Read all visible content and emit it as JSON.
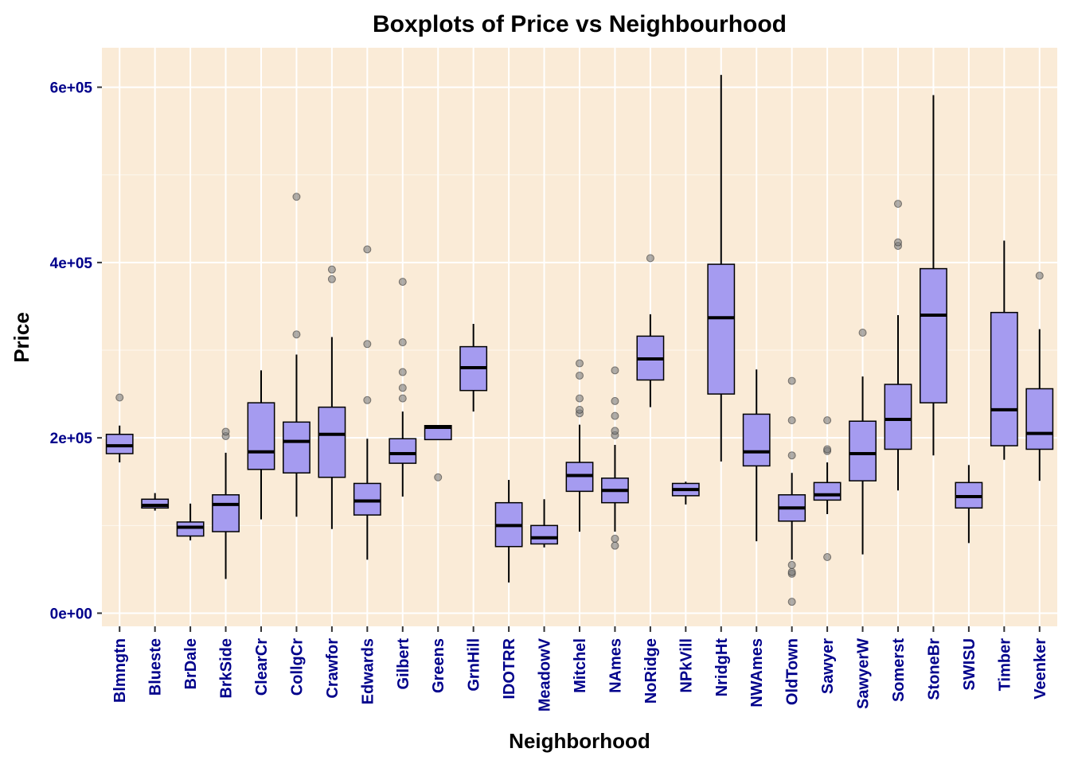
{
  "chart_data": {
    "type": "boxplot",
    "title": "Boxplots of Price vs Neighbourhood",
    "xlabel": "Neighborhood",
    "ylabel": "Price",
    "ylim": [
      -15000,
      645000
    ],
    "yticks": [
      0,
      200000,
      400000,
      600000
    ],
    "ytick_labels": [
      "0e+00",
      "2e+05",
      "4e+05",
      "6e+05"
    ],
    "grid": true,
    "colors": {
      "panel_background": "#faebd7",
      "grid_major": "#ffffff",
      "box_fill": "#a59bf0",
      "box_border": "#000000",
      "outlier": "#7a7a7a",
      "tick_text": "#00008b"
    },
    "categories": [
      "Blmngtn",
      "Blueste",
      "BrDale",
      "BrkSide",
      "ClearCr",
      "CollgCr",
      "Crawfor",
      "Edwards",
      "Gilbert",
      "Greens",
      "GrnHill",
      "IDOTRR",
      "MeadowV",
      "Mitchel",
      "NAmes",
      "NoRidge",
      "NPkVill",
      "NridgHt",
      "NWAmes",
      "OldTown",
      "Sawyer",
      "SawyerW",
      "Somerst",
      "StoneBr",
      "SWISU",
      "Timber",
      "Veenker"
    ],
    "boxes": [
      {
        "min": 172000,
        "q1": 182000,
        "median": 191000,
        "q3": 204000,
        "max": 214000,
        "outliers": [
          246000
        ]
      },
      {
        "min": 117000,
        "q1": 120000,
        "median": 123000,
        "q3": 130000,
        "max": 137000,
        "outliers": []
      },
      {
        "min": 83000,
        "q1": 88000,
        "median": 98000,
        "q3": 104000,
        "max": 125000,
        "outliers": []
      },
      {
        "min": 39000,
        "q1": 93000,
        "median": 124000,
        "q3": 135000,
        "max": 183000,
        "outliers": [
          202000,
          207000
        ]
      },
      {
        "min": 107000,
        "q1": 164000,
        "median": 184000,
        "q3": 240000,
        "max": 277000,
        "outliers": []
      },
      {
        "min": 110000,
        "q1": 160000,
        "median": 196000,
        "q3": 218000,
        "max": 295000,
        "outliers": [
          318000,
          475000
        ]
      },
      {
        "min": 96000,
        "q1": 155000,
        "median": 204000,
        "q3": 235000,
        "max": 315000,
        "outliers": [
          381000,
          392000
        ]
      },
      {
        "min": 61000,
        "q1": 112000,
        "median": 128000,
        "q3": 148000,
        "max": 199000,
        "outliers": [
          243000,
          307000,
          415000
        ]
      },
      {
        "min": 133000,
        "q1": 171000,
        "median": 182000,
        "q3": 199000,
        "max": 230000,
        "outliers": [
          245000,
          257000,
          275000,
          309000,
          378000
        ]
      },
      {
        "min": 198000,
        "q1": 198000,
        "median": 212000,
        "q3": 214000,
        "max": 214000,
        "outliers": [
          155000
        ]
      },
      {
        "min": 230000,
        "q1": 254000,
        "median": 280000,
        "q3": 304000,
        "max": 330000,
        "outliers": []
      },
      {
        "min": 35000,
        "q1": 76000,
        "median": 100000,
        "q3": 126000,
        "max": 152000,
        "outliers": []
      },
      {
        "min": 75000,
        "q1": 79000,
        "median": 86000,
        "q3": 100000,
        "max": 130000,
        "outliers": []
      },
      {
        "min": 93000,
        "q1": 139000,
        "median": 157000,
        "q3": 172000,
        "max": 215000,
        "outliers": [
          228000,
          232000,
          245000,
          271000,
          285000
        ]
      },
      {
        "min": 93000,
        "q1": 126000,
        "median": 140000,
        "q3": 154000,
        "max": 192000,
        "outliers": [
          77000,
          85000,
          203000,
          208000,
          225000,
          242000,
          277000
        ]
      },
      {
        "min": 235000,
        "q1": 266000,
        "median": 290000,
        "q3": 316000,
        "max": 341000,
        "outliers": [
          405000
        ]
      },
      {
        "min": 124000,
        "q1": 134000,
        "median": 141000,
        "q3": 148000,
        "max": 150000,
        "outliers": []
      },
      {
        "min": 173000,
        "q1": 250000,
        "median": 337000,
        "q3": 398000,
        "max": 614000,
        "outliers": []
      },
      {
        "min": 82000,
        "q1": 168000,
        "median": 184000,
        "q3": 227000,
        "max": 278000,
        "outliers": []
      },
      {
        "min": 61000,
        "q1": 105000,
        "median": 120000,
        "q3": 135000,
        "max": 160000,
        "outliers": [
          13000,
          45000,
          47000,
          55000,
          180000,
          220000,
          265000
        ]
      },
      {
        "min": 113000,
        "q1": 129000,
        "median": 135000,
        "q3": 149000,
        "max": 172000,
        "outliers": [
          64000,
          185000,
          187000,
          220000
        ]
      },
      {
        "min": 67000,
        "q1": 151000,
        "median": 182000,
        "q3": 219000,
        "max": 270000,
        "outliers": [
          320000
        ]
      },
      {
        "min": 140000,
        "q1": 187000,
        "median": 221000,
        "q3": 261000,
        "max": 340000,
        "outliers": [
          419000,
          423000,
          467000
        ]
      },
      {
        "min": 180000,
        "q1": 240000,
        "median": 340000,
        "q3": 393000,
        "max": 591000,
        "outliers": []
      },
      {
        "min": 80000,
        "q1": 120000,
        "median": 133000,
        "q3": 149000,
        "max": 169000,
        "outliers": []
      },
      {
        "min": 175000,
        "q1": 191000,
        "median": 232000,
        "q3": 343000,
        "max": 425000,
        "outliers": []
      },
      {
        "min": 151000,
        "q1": 187000,
        "median": 205000,
        "q3": 256000,
        "max": 324000,
        "outliers": [
          385000
        ]
      }
    ]
  }
}
